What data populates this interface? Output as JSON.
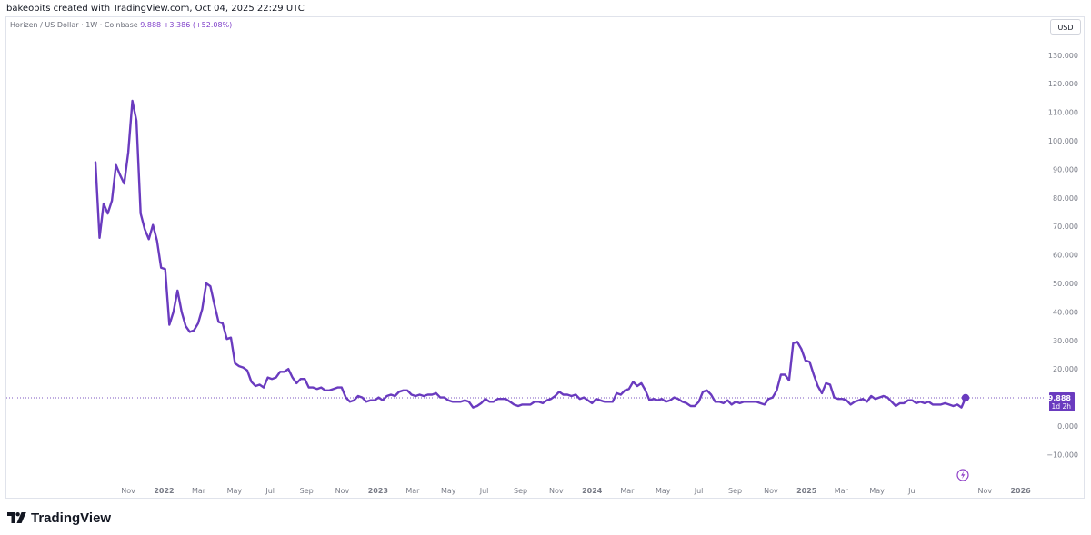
{
  "header": {
    "caption": "bakeobits created with TradingView.com, Oct 04, 2025 22:29 UTC"
  },
  "legend": {
    "symbol": "Horizen / US Dollar · 1W · Coinbase",
    "last": "9.888",
    "change": "+3.386 (+52.08%)"
  },
  "currency_button": "USD",
  "price_label": {
    "value": "9.888",
    "countdown": "1d 2h"
  },
  "brand": {
    "name": "TradingView",
    "logo": "tradingview-logo-icon"
  },
  "colors": {
    "line": "#6a3bbf",
    "axis_text": "#787b86",
    "frame": "#e0e3eb",
    "price_line": "#7e57c2"
  },
  "chart_data": {
    "type": "line",
    "title": "",
    "xlabel": "",
    "ylabel": "",
    "ylim": [
      -15,
      140
    ],
    "y_ticks": [
      130,
      120,
      110,
      100,
      90,
      80,
      70,
      60,
      50,
      40,
      30,
      20,
      10,
      0,
      -10
    ],
    "y_tick_labels": [
      "130.000",
      "120.000",
      "110.000",
      "100.000",
      "90.000",
      "80.000",
      "70.000",
      "60.000",
      "50.000",
      "40.000",
      "30.000",
      "20.000",
      "",
      "0.000",
      "−10.000"
    ],
    "x_ticks": [
      {
        "date": "2021-11-01",
        "label": "Nov"
      },
      {
        "date": "2022-01-01",
        "label": "2022"
      },
      {
        "date": "2022-03-01",
        "label": "Mar"
      },
      {
        "date": "2022-05-01",
        "label": "May"
      },
      {
        "date": "2022-07-01",
        "label": "Jul"
      },
      {
        "date": "2022-09-01",
        "label": "Sep"
      },
      {
        "date": "2022-11-01",
        "label": "Nov"
      },
      {
        "date": "2023-01-01",
        "label": "2023"
      },
      {
        "date": "2023-03-01",
        "label": "Mar"
      },
      {
        "date": "2023-05-01",
        "label": "May"
      },
      {
        "date": "2023-07-01",
        "label": "Jul"
      },
      {
        "date": "2023-09-01",
        "label": "Sep"
      },
      {
        "date": "2023-11-01",
        "label": "Nov"
      },
      {
        "date": "2024-01-01",
        "label": "2024"
      },
      {
        "date": "2024-03-01",
        "label": "Mar"
      },
      {
        "date": "2024-05-01",
        "label": "May"
      },
      {
        "date": "2024-07-01",
        "label": "Jul"
      },
      {
        "date": "2024-09-01",
        "label": "Sep"
      },
      {
        "date": "2024-11-01",
        "label": "Nov"
      },
      {
        "date": "2025-01-01",
        "label": "2025"
      },
      {
        "date": "2025-03-01",
        "label": "Mar"
      },
      {
        "date": "2025-05-01",
        "label": "May"
      },
      {
        "date": "2025-07-01",
        "label": "Jul"
      },
      {
        "date": "2025-11-01",
        "label": "Nov"
      },
      {
        "date": "2026-01-01",
        "label": "2026"
      }
    ],
    "last_value": 9.888,
    "series": [
      {
        "color": "#6a3bbf",
        "points": [
          [
            "2021-09-06",
            92.5
          ],
          [
            "2021-09-13",
            66
          ],
          [
            "2021-09-20",
            78
          ],
          [
            "2021-09-27",
            74.5
          ],
          [
            "2021-10-04",
            79
          ],
          [
            "2021-10-11",
            91.5
          ],
          [
            "2021-10-18",
            88
          ],
          [
            "2021-10-25",
            85
          ],
          [
            "2021-11-01",
            96
          ],
          [
            "2021-11-08",
            114
          ],
          [
            "2021-11-15",
            107
          ],
          [
            "2021-11-22",
            74.5
          ],
          [
            "2021-11-29",
            69
          ],
          [
            "2021-12-06",
            65.5
          ],
          [
            "2021-12-13",
            70.5
          ],
          [
            "2021-12-20",
            65
          ],
          [
            "2021-12-27",
            55.5
          ],
          [
            "2022-01-03",
            55
          ],
          [
            "2022-01-10",
            35.5
          ],
          [
            "2022-01-17",
            40
          ],
          [
            "2022-01-24",
            47.5
          ],
          [
            "2022-01-31",
            40
          ],
          [
            "2022-02-07",
            35
          ],
          [
            "2022-02-14",
            33
          ],
          [
            "2022-02-21",
            33.5
          ],
          [
            "2022-02-28",
            36
          ],
          [
            "2022-03-07",
            41
          ],
          [
            "2022-03-14",
            50
          ],
          [
            "2022-03-21",
            49
          ],
          [
            "2022-03-28",
            42.5
          ],
          [
            "2022-04-04",
            36.5
          ],
          [
            "2022-04-11",
            36
          ],
          [
            "2022-04-18",
            30.5
          ],
          [
            "2022-04-25",
            31
          ],
          [
            "2022-05-02",
            22
          ],
          [
            "2022-05-09",
            21
          ],
          [
            "2022-05-16",
            20.5
          ],
          [
            "2022-05-23",
            19.5
          ],
          [
            "2022-05-30",
            15.5
          ],
          [
            "2022-06-06",
            14
          ],
          [
            "2022-06-13",
            14.5
          ],
          [
            "2022-06-20",
            13.5
          ],
          [
            "2022-06-27",
            17
          ],
          [
            "2022-07-04",
            16.5
          ],
          [
            "2022-07-11",
            17
          ],
          [
            "2022-07-18",
            19
          ],
          [
            "2022-07-25",
            19
          ],
          [
            "2022-08-01",
            20
          ],
          [
            "2022-08-08",
            17
          ],
          [
            "2022-08-15",
            15
          ],
          [
            "2022-08-22",
            16.5
          ],
          [
            "2022-08-29",
            16.5
          ],
          [
            "2022-09-05",
            13.5
          ],
          [
            "2022-09-12",
            13.5
          ],
          [
            "2022-09-19",
            13
          ],
          [
            "2022-09-26",
            13.5
          ],
          [
            "2022-10-03",
            12.5
          ],
          [
            "2022-10-10",
            12.5
          ],
          [
            "2022-10-17",
            13
          ],
          [
            "2022-10-24",
            13.5
          ],
          [
            "2022-10-31",
            13.5
          ],
          [
            "2022-11-07",
            10
          ],
          [
            "2022-11-14",
            8.5
          ],
          [
            "2022-11-21",
            9
          ],
          [
            "2022-11-28",
            10.5
          ],
          [
            "2022-12-05",
            10
          ],
          [
            "2022-12-12",
            8.5
          ],
          [
            "2022-12-19",
            9
          ],
          [
            "2022-12-26",
            9
          ],
          [
            "2023-01-02",
            10
          ],
          [
            "2023-01-09",
            9
          ],
          [
            "2023-01-16",
            10.5
          ],
          [
            "2023-01-23",
            11
          ],
          [
            "2023-01-30",
            10.5
          ],
          [
            "2023-02-06",
            12
          ],
          [
            "2023-02-13",
            12.5
          ],
          [
            "2023-02-20",
            12.5
          ],
          [
            "2023-02-27",
            11
          ],
          [
            "2023-03-06",
            10.5
          ],
          [
            "2023-03-13",
            11
          ],
          [
            "2023-03-20",
            10.5
          ],
          [
            "2023-03-27",
            11
          ],
          [
            "2023-04-03",
            11
          ],
          [
            "2023-04-10",
            11.5
          ],
          [
            "2023-04-17",
            10
          ],
          [
            "2023-04-24",
            10
          ],
          [
            "2023-05-01",
            9
          ],
          [
            "2023-05-08",
            8.5
          ],
          [
            "2023-05-15",
            8.5
          ],
          [
            "2023-05-22",
            8.5
          ],
          [
            "2023-05-29",
            9
          ],
          [
            "2023-06-05",
            8.5
          ],
          [
            "2023-06-12",
            6.5
          ],
          [
            "2023-06-19",
            7
          ],
          [
            "2023-06-26",
            8
          ],
          [
            "2023-07-03",
            9.5
          ],
          [
            "2023-07-10",
            8.5
          ],
          [
            "2023-07-17",
            8.5
          ],
          [
            "2023-07-24",
            9.5
          ],
          [
            "2023-07-31",
            9.5
          ],
          [
            "2023-08-07",
            9.5
          ],
          [
            "2023-08-14",
            8.5
          ],
          [
            "2023-08-21",
            7.5
          ],
          [
            "2023-08-28",
            7
          ],
          [
            "2023-09-04",
            7.5
          ],
          [
            "2023-09-11",
            7.5
          ],
          [
            "2023-09-18",
            7.5
          ],
          [
            "2023-09-25",
            8.5
          ],
          [
            "2023-10-02",
            8.5
          ],
          [
            "2023-10-09",
            8
          ],
          [
            "2023-10-16",
            9
          ],
          [
            "2023-10-23",
            9.5
          ],
          [
            "2023-10-30",
            10.5
          ],
          [
            "2023-11-06",
            12
          ],
          [
            "2023-11-13",
            11
          ],
          [
            "2023-11-20",
            11
          ],
          [
            "2023-11-27",
            10.5
          ],
          [
            "2023-12-04",
            11
          ],
          [
            "2023-12-11",
            9.5
          ],
          [
            "2023-12-18",
            10
          ],
          [
            "2023-12-25",
            9
          ],
          [
            "2024-01-01",
            8
          ],
          [
            "2024-01-08",
            9.5
          ],
          [
            "2024-01-15",
            9
          ],
          [
            "2024-01-22",
            8.5
          ],
          [
            "2024-01-29",
            8.5
          ],
          [
            "2024-02-05",
            8.5
          ],
          [
            "2024-02-12",
            11.5
          ],
          [
            "2024-02-19",
            11
          ],
          [
            "2024-02-26",
            12.5
          ],
          [
            "2024-03-04",
            13
          ],
          [
            "2024-03-11",
            15.5
          ],
          [
            "2024-03-18",
            14
          ],
          [
            "2024-03-25",
            15
          ],
          [
            "2024-04-01",
            12.5
          ],
          [
            "2024-04-08",
            9
          ],
          [
            "2024-04-15",
            9.5
          ],
          [
            "2024-04-22",
            9
          ],
          [
            "2024-04-29",
            9.5
          ],
          [
            "2024-05-06",
            8.5
          ],
          [
            "2024-05-13",
            9
          ],
          [
            "2024-05-20",
            10
          ],
          [
            "2024-05-27",
            9.5
          ],
          [
            "2024-06-03",
            8.5
          ],
          [
            "2024-06-10",
            8
          ],
          [
            "2024-06-17",
            7
          ],
          [
            "2024-06-24",
            7
          ],
          [
            "2024-07-01",
            8.5
          ],
          [
            "2024-07-08",
            12
          ],
          [
            "2024-07-15",
            12.5
          ],
          [
            "2024-07-22",
            11
          ],
          [
            "2024-07-29",
            8.5
          ],
          [
            "2024-08-05",
            8.5
          ],
          [
            "2024-08-12",
            8
          ],
          [
            "2024-08-19",
            9
          ],
          [
            "2024-08-26",
            7.5
          ],
          [
            "2024-09-02",
            8.5
          ],
          [
            "2024-09-09",
            8
          ],
          [
            "2024-09-16",
            8.5
          ],
          [
            "2024-09-23",
            8.5
          ],
          [
            "2024-09-30",
            8.5
          ],
          [
            "2024-10-07",
            8.5
          ],
          [
            "2024-10-14",
            8
          ],
          [
            "2024-10-21",
            7.5
          ],
          [
            "2024-10-28",
            9.5
          ],
          [
            "2024-11-04",
            10
          ],
          [
            "2024-11-11",
            12.5
          ],
          [
            "2024-11-18",
            18
          ],
          [
            "2024-11-25",
            18
          ],
          [
            "2024-12-02",
            16
          ],
          [
            "2024-12-09",
            29
          ],
          [
            "2024-12-16",
            29.5
          ],
          [
            "2024-12-23",
            27
          ],
          [
            "2024-12-30",
            23
          ],
          [
            "2025-01-06",
            22.5
          ],
          [
            "2025-01-13",
            18
          ],
          [
            "2025-01-20",
            14
          ],
          [
            "2025-01-27",
            11.5
          ],
          [
            "2025-02-03",
            15
          ],
          [
            "2025-02-10",
            14.5
          ],
          [
            "2025-02-17",
            10
          ],
          [
            "2025-02-24",
            9.5
          ],
          [
            "2025-03-03",
            9.5
          ],
          [
            "2025-03-10",
            9
          ],
          [
            "2025-03-17",
            7.5
          ],
          [
            "2025-03-24",
            8.5
          ],
          [
            "2025-03-31",
            9
          ],
          [
            "2025-04-07",
            9.5
          ],
          [
            "2025-04-14",
            8.5
          ],
          [
            "2025-04-21",
            10.5
          ],
          [
            "2025-04-28",
            9.5
          ],
          [
            "2025-05-05",
            10
          ],
          [
            "2025-05-12",
            10.5
          ],
          [
            "2025-05-19",
            10
          ],
          [
            "2025-05-26",
            8.5
          ],
          [
            "2025-06-02",
            7
          ],
          [
            "2025-06-09",
            8
          ],
          [
            "2025-06-16",
            8
          ],
          [
            "2025-06-23",
            9
          ],
          [
            "2025-06-30",
            9
          ],
          [
            "2025-07-07",
            8
          ],
          [
            "2025-07-14",
            8.5
          ],
          [
            "2025-07-21",
            8
          ],
          [
            "2025-07-28",
            8.5
          ],
          [
            "2025-08-04",
            7.5
          ],
          [
            "2025-08-11",
            7.5
          ],
          [
            "2025-08-18",
            7.5
          ],
          [
            "2025-08-25",
            8
          ],
          [
            "2025-09-01",
            7.5
          ],
          [
            "2025-09-08",
            7
          ],
          [
            "2025-09-15",
            7.5
          ],
          [
            "2025-09-22",
            6.5
          ],
          [
            "2025-09-29",
            9.888
          ]
        ]
      }
    ]
  }
}
